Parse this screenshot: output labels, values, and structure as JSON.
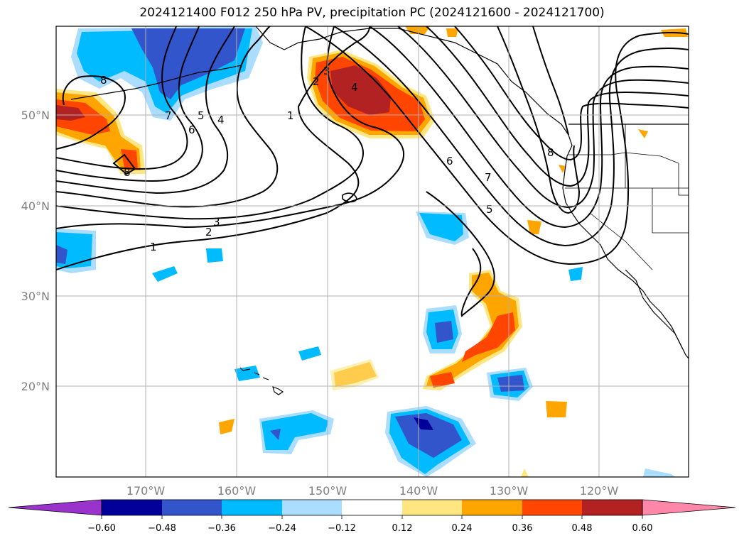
{
  "title": "2024121400 F012 250 hPa PV, precipitation PC (2024121600 - 2024121700)",
  "map": {
    "lon_labels": [
      "170°W",
      "160°W",
      "150°W",
      "140°W",
      "130°W",
      "120°W"
    ],
    "lat_labels": [
      "50°N",
      "40°N",
      "30°N",
      "20°N"
    ],
    "pv_contour_labels": [
      "1",
      "2",
      "3",
      "4",
      "5",
      "6",
      "7",
      "8"
    ]
  },
  "colorbar": {
    "ticks": [
      "−0.60",
      "−0.48",
      "−0.36",
      "−0.24",
      "−0.12",
      "0.12",
      "0.24",
      "0.36",
      "0.48",
      "0.60"
    ],
    "colors": [
      "#9933cc",
      "#000099",
      "#3355cc",
      "#00bbff",
      "#aaddff",
      "#ffffff",
      "#ffe680",
      "#ffa500",
      "#ff4500",
      "#b22222",
      "#ff88aa"
    ]
  }
}
